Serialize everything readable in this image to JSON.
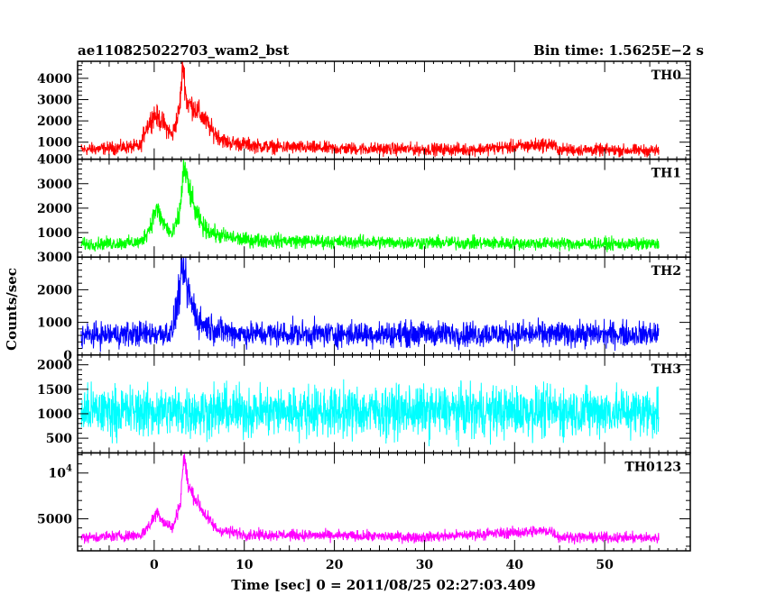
{
  "header": {
    "left_title": "ae110825022703_wam2_bst",
    "right_title": "Bin time: 1.5625E−2 s"
  },
  "chart_data": {
    "type": "line",
    "xlabel": "Time [sec] 0 = 2011/08/25 02:27:03.409",
    "ylabel": "Counts/sec",
    "xlim": [
      -8.5,
      59.5
    ],
    "x_range": [
      -8.1,
      56.0
    ],
    "x_ticks": [
      0,
      10,
      20,
      30,
      40,
      50
    ],
    "panels": [
      {
        "name": "TH0",
        "color": "#ff0000",
        "ylim": [
          200,
          4800
        ],
        "y_ticks": [
          1000,
          2000,
          3000,
          4000
        ],
        "y_tick_labels": [
          "1000",
          "2000",
          "3000",
          "4000"
        ],
        "baseline": 650,
        "noise": 430,
        "points": [
          [
            -8,
            650
          ],
          [
            -1.5,
            800
          ],
          [
            -1,
            1600
          ],
          [
            0,
            2300
          ],
          [
            1,
            1900
          ],
          [
            2,
            1300
          ],
          [
            2.8,
            2500
          ],
          [
            3.2,
            4700
          ],
          [
            3.6,
            2900
          ],
          [
            4.5,
            2600
          ],
          [
            5.5,
            2100
          ],
          [
            6.5,
            1500
          ],
          [
            8,
            1000
          ],
          [
            12,
            800
          ],
          [
            20,
            700
          ],
          [
            35,
            650
          ],
          [
            44,
            900
          ],
          [
            45,
            650
          ],
          [
            56,
            600
          ]
        ]
      },
      {
        "name": "TH1",
        "color": "#00ff00",
        "ylim": [
          0,
          4000
        ],
        "y_ticks": [
          1000,
          2000,
          3000,
          4000
        ],
        "y_tick_labels": [
          "1000",
          "2000",
          "3000",
          "4000"
        ],
        "baseline": 520,
        "noise": 380,
        "points": [
          [
            -8,
            520
          ],
          [
            -1.5,
            600
          ],
          [
            -0.5,
            1200
          ],
          [
            0.2,
            2000
          ],
          [
            1,
            1400
          ],
          [
            2,
            900
          ],
          [
            2.8,
            1700
          ],
          [
            3.3,
            3700
          ],
          [
            3.8,
            2900
          ],
          [
            4.6,
            1800
          ],
          [
            5.5,
            1200
          ],
          [
            7,
            900
          ],
          [
            10,
            700
          ],
          [
            20,
            620
          ],
          [
            56,
            520
          ]
        ]
      },
      {
        "name": "TH2",
        "color": "#0000ff",
        "ylim": [
          0,
          3000
        ],
        "y_ticks": [
          0,
          1000,
          2000,
          3000
        ],
        "y_tick_labels": [
          "0",
          "1000",
          "2000",
          "3000"
        ],
        "baseline": 620,
        "noise": 560,
        "points": [
          [
            -8,
            600
          ],
          [
            2,
            680
          ],
          [
            3.2,
            2600
          ],
          [
            4,
            1700
          ],
          [
            5,
            1000
          ],
          [
            7,
            760
          ],
          [
            10,
            650
          ],
          [
            56,
            640
          ]
        ]
      },
      {
        "name": "TH3",
        "color": "#00ffff",
        "ylim": [
          200,
          2200
        ],
        "y_ticks": [
          500,
          1000,
          1500,
          2000
        ],
        "y_tick_labels": [
          "500",
          "1000",
          "1500",
          "2000"
        ],
        "baseline": 1050,
        "noise": 760,
        "points": [
          [
            -8,
            1050
          ],
          [
            56,
            1050
          ]
        ]
      },
      {
        "name": "TH0123",
        "color": "#ff00ff",
        "ylim": [
          1500,
          12200
        ],
        "y_ticks": [
          5000,
          10000
        ],
        "y_tick_labels": [
          "5000",
          "10^4"
        ],
        "baseline": 2950,
        "noise": 850,
        "points": [
          [
            -8,
            2950
          ],
          [
            -1.5,
            3200
          ],
          [
            -0.5,
            4300
          ],
          [
            0.3,
            5800
          ],
          [
            1.2,
            4500
          ],
          [
            2.1,
            4000
          ],
          [
            2.9,
            6800
          ],
          [
            3.3,
            12000
          ],
          [
            3.8,
            8500
          ],
          [
            4.8,
            6800
          ],
          [
            5.8,
            5200
          ],
          [
            7,
            3800
          ],
          [
            10,
            3300
          ],
          [
            30,
            3000
          ],
          [
            44,
            3700
          ],
          [
            45,
            3000
          ],
          [
            56,
            2900
          ]
        ]
      }
    ]
  }
}
